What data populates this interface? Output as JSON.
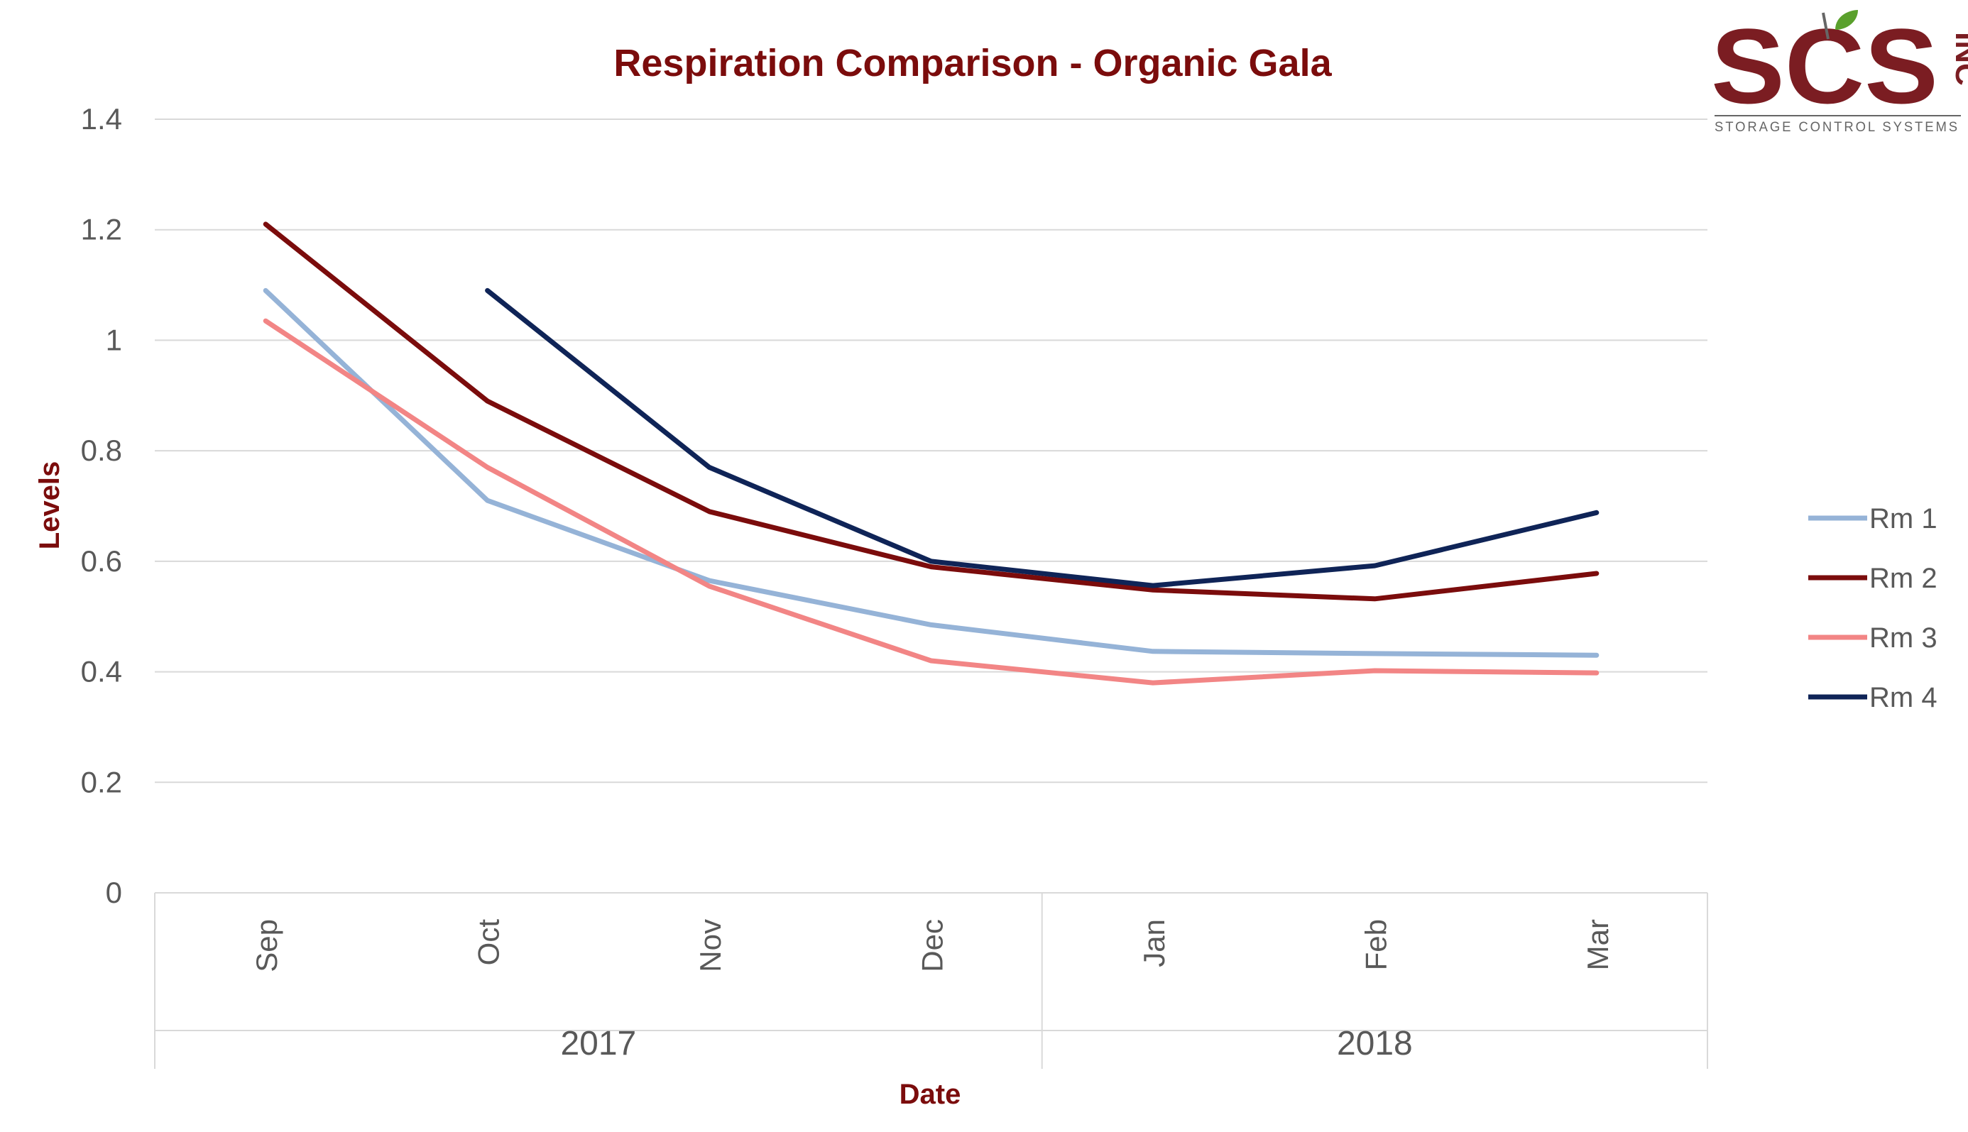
{
  "colors": {
    "title": "#7b0c0c",
    "grid": "#d9d9d9",
    "tick_text": "#595959",
    "rm1": "#95b3d7",
    "rm2": "#7b0c0c",
    "rm3": "#f28585",
    "rm4": "#0f2457",
    "logo_red": "#7b1d22",
    "logo_gray": "#666666",
    "logo_leaf": "#5aa02c"
  },
  "logo": {
    "letters": "SCS",
    "suffix": "INC",
    "subtitle": "STORAGE CONTROL SYSTEMS"
  },
  "chart_data": {
    "type": "line",
    "title": "Respiration Comparison - Organic Gala",
    "xlabel": "Date",
    "ylabel": "Levels",
    "ylim": [
      0,
      1.4
    ],
    "yticks": [
      0,
      0.2,
      0.4,
      0.6,
      0.8,
      1,
      1.2,
      1.4
    ],
    "ytick_labels": [
      "0",
      "0.2",
      "0.4",
      "0.6",
      "0.8",
      "1",
      "1.2",
      "1.4"
    ],
    "grid": true,
    "legend_position": "right",
    "categories": [
      "Sep",
      "Oct",
      "Nov",
      "Dec",
      "Jan",
      "Feb",
      "Mar"
    ],
    "groups": [
      {
        "label": "2017",
        "count": 4
      },
      {
        "label": "2018",
        "count": 3
      }
    ],
    "series": [
      {
        "name": "Rm 1",
        "color_key": "rm1",
        "values": [
          1.09,
          0.71,
          0.565,
          0.485,
          0.437,
          0.433,
          0.43
        ]
      },
      {
        "name": "Rm 2",
        "color_key": "rm2",
        "values": [
          1.21,
          0.89,
          0.69,
          0.59,
          0.548,
          0.532,
          0.578
        ]
      },
      {
        "name": "Rm 3",
        "color_key": "rm3",
        "values": [
          1.035,
          0.77,
          0.555,
          0.42,
          0.38,
          0.402,
          0.398
        ]
      },
      {
        "name": "Rm 4",
        "color_key": "rm4",
        "values": [
          null,
          1.09,
          0.77,
          0.6,
          0.556,
          0.592,
          0.688
        ]
      }
    ]
  }
}
